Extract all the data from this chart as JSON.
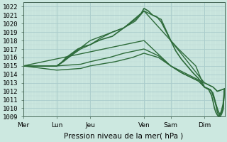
{
  "background_color": "#cce8e0",
  "grid_major_color": "#aacccc",
  "grid_minor_color": "#bbd8d4",
  "line_color": "#2d6b3a",
  "xlim": [
    0,
    7
  ],
  "ylim": [
    1009,
    1022.5
  ],
  "yticks": [
    1009,
    1010,
    1011,
    1012,
    1013,
    1014,
    1015,
    1016,
    1017,
    1018,
    1019,
    1020,
    1021,
    1022
  ],
  "xtick_labels": [
    "Mer",
    "Lun",
    "Jeu",
    "Ven",
    "Sam",
    "Dim"
  ],
  "xtick_positions": [
    0.0,
    1.17,
    2.33,
    4.2,
    5.13,
    6.3
  ],
  "xlabel": "Pression niveau de la mer( hPa )",
  "label_fontsize": 6.5,
  "xlabel_fontsize": 7.5,
  "series": [
    {
      "x": [
        0.0,
        0.3,
        0.6,
        0.9,
        1.17,
        1.3,
        1.5,
        1.7,
        1.9,
        2.1,
        2.33,
        2.5,
        2.7,
        2.9,
        3.1,
        3.3,
        3.5,
        3.7,
        3.9,
        4.1,
        4.2,
        4.35,
        4.5,
        4.65,
        4.8,
        5.13,
        5.3,
        5.5,
        5.7,
        5.9,
        6.1,
        6.3,
        6.45,
        6.55,
        6.6,
        6.65,
        6.7,
        6.75,
        6.8,
        6.85,
        6.9,
        6.95,
        7.0
      ],
      "y": [
        1015,
        1015,
        1015,
        1015,
        1015,
        1015.3,
        1016,
        1016.5,
        1017,
        1017.3,
        1017.5,
        1017.8,
        1018.1,
        1018.3,
        1018.5,
        1019.0,
        1019.5,
        1020.0,
        1020.5,
        1021.2,
        1021.8,
        1021.5,
        1021.0,
        1020.8,
        1020.2,
        1018.0,
        1016.8,
        1015.8,
        1015.0,
        1014.2,
        1013.5,
        1012.5,
        1012.2,
        1011.5,
        1010.8,
        1010.0,
        1009.5,
        1009.2,
        1009.0,
        1009.3,
        1009.8,
        1010.5,
        1012.3
      ]
    },
    {
      "x": [
        0.0,
        1.17,
        1.4,
        1.7,
        2.0,
        2.33,
        2.7,
        3.1,
        3.5,
        3.9,
        4.2,
        4.5,
        4.8,
        5.13,
        5.4,
        5.7,
        6.0,
        6.3,
        6.5,
        6.6,
        6.65,
        6.7,
        6.75,
        6.8,
        6.85,
        6.95,
        7.0
      ],
      "y": [
        1015,
        1015,
        1015.5,
        1016.3,
        1017.0,
        1017.5,
        1018.3,
        1019.0,
        1019.5,
        1020.3,
        1021.5,
        1021.0,
        1020.5,
        1018.0,
        1017.0,
        1016.0,
        1015.0,
        1012.5,
        1012.2,
        1011.8,
        1011.2,
        1010.5,
        1010.0,
        1009.5,
        1009.3,
        1009.8,
        1012.3
      ]
    },
    {
      "x": [
        0.0,
        1.17,
        2.33,
        3.5,
        4.2,
        5.13,
        6.3,
        6.6,
        6.75,
        7.0
      ],
      "y": [
        1015,
        1015,
        1018,
        1019.5,
        1021.5,
        1018.0,
        1013.0,
        1012.5,
        1012.0,
        1012.3
      ]
    },
    {
      "x": [
        0.0,
        4.2,
        5.13,
        6.3,
        6.6,
        6.75,
        7.0
      ],
      "y": [
        1015,
        1018,
        1015,
        1013.0,
        1012.5,
        1012.0,
        1012.3
      ]
    },
    {
      "x": [
        0.0,
        1.17,
        2.0,
        2.33,
        3.2,
        3.8,
        4.2,
        4.7,
        5.13,
        5.5,
        6.1,
        6.3,
        6.5,
        6.55,
        6.6,
        6.65,
        6.7,
        6.75,
        6.8,
        6.85,
        6.9,
        6.95,
        7.0
      ],
      "y": [
        1015,
        1014.5,
        1014.7,
        1015.0,
        1015.5,
        1016.0,
        1016.5,
        1016.0,
        1015.0,
        1014.2,
        1013.2,
        1012.5,
        1012.2,
        1012.0,
        1011.5,
        1011.0,
        1010.3,
        1009.5,
        1009.2,
        1009.0,
        1009.3,
        1009.8,
        1012.3
      ]
    },
    {
      "x": [
        0.0,
        1.17,
        2.0,
        2.33,
        3.0,
        3.5,
        4.2,
        4.7,
        5.13,
        5.5,
        6.1,
        6.3,
        6.5,
        6.55,
        6.6,
        6.65,
        6.7,
        6.75,
        6.8,
        6.85,
        6.9,
        6.95,
        7.0
      ],
      "y": [
        1015,
        1015,
        1015.2,
        1015.5,
        1016.0,
        1016.5,
        1017.0,
        1016.2,
        1015.0,
        1014.2,
        1013.2,
        1012.5,
        1012.2,
        1012.0,
        1011.5,
        1011.0,
        1010.5,
        1009.8,
        1009.5,
        1009.2,
        1009.5,
        1010.0,
        1012.3
      ]
    }
  ]
}
